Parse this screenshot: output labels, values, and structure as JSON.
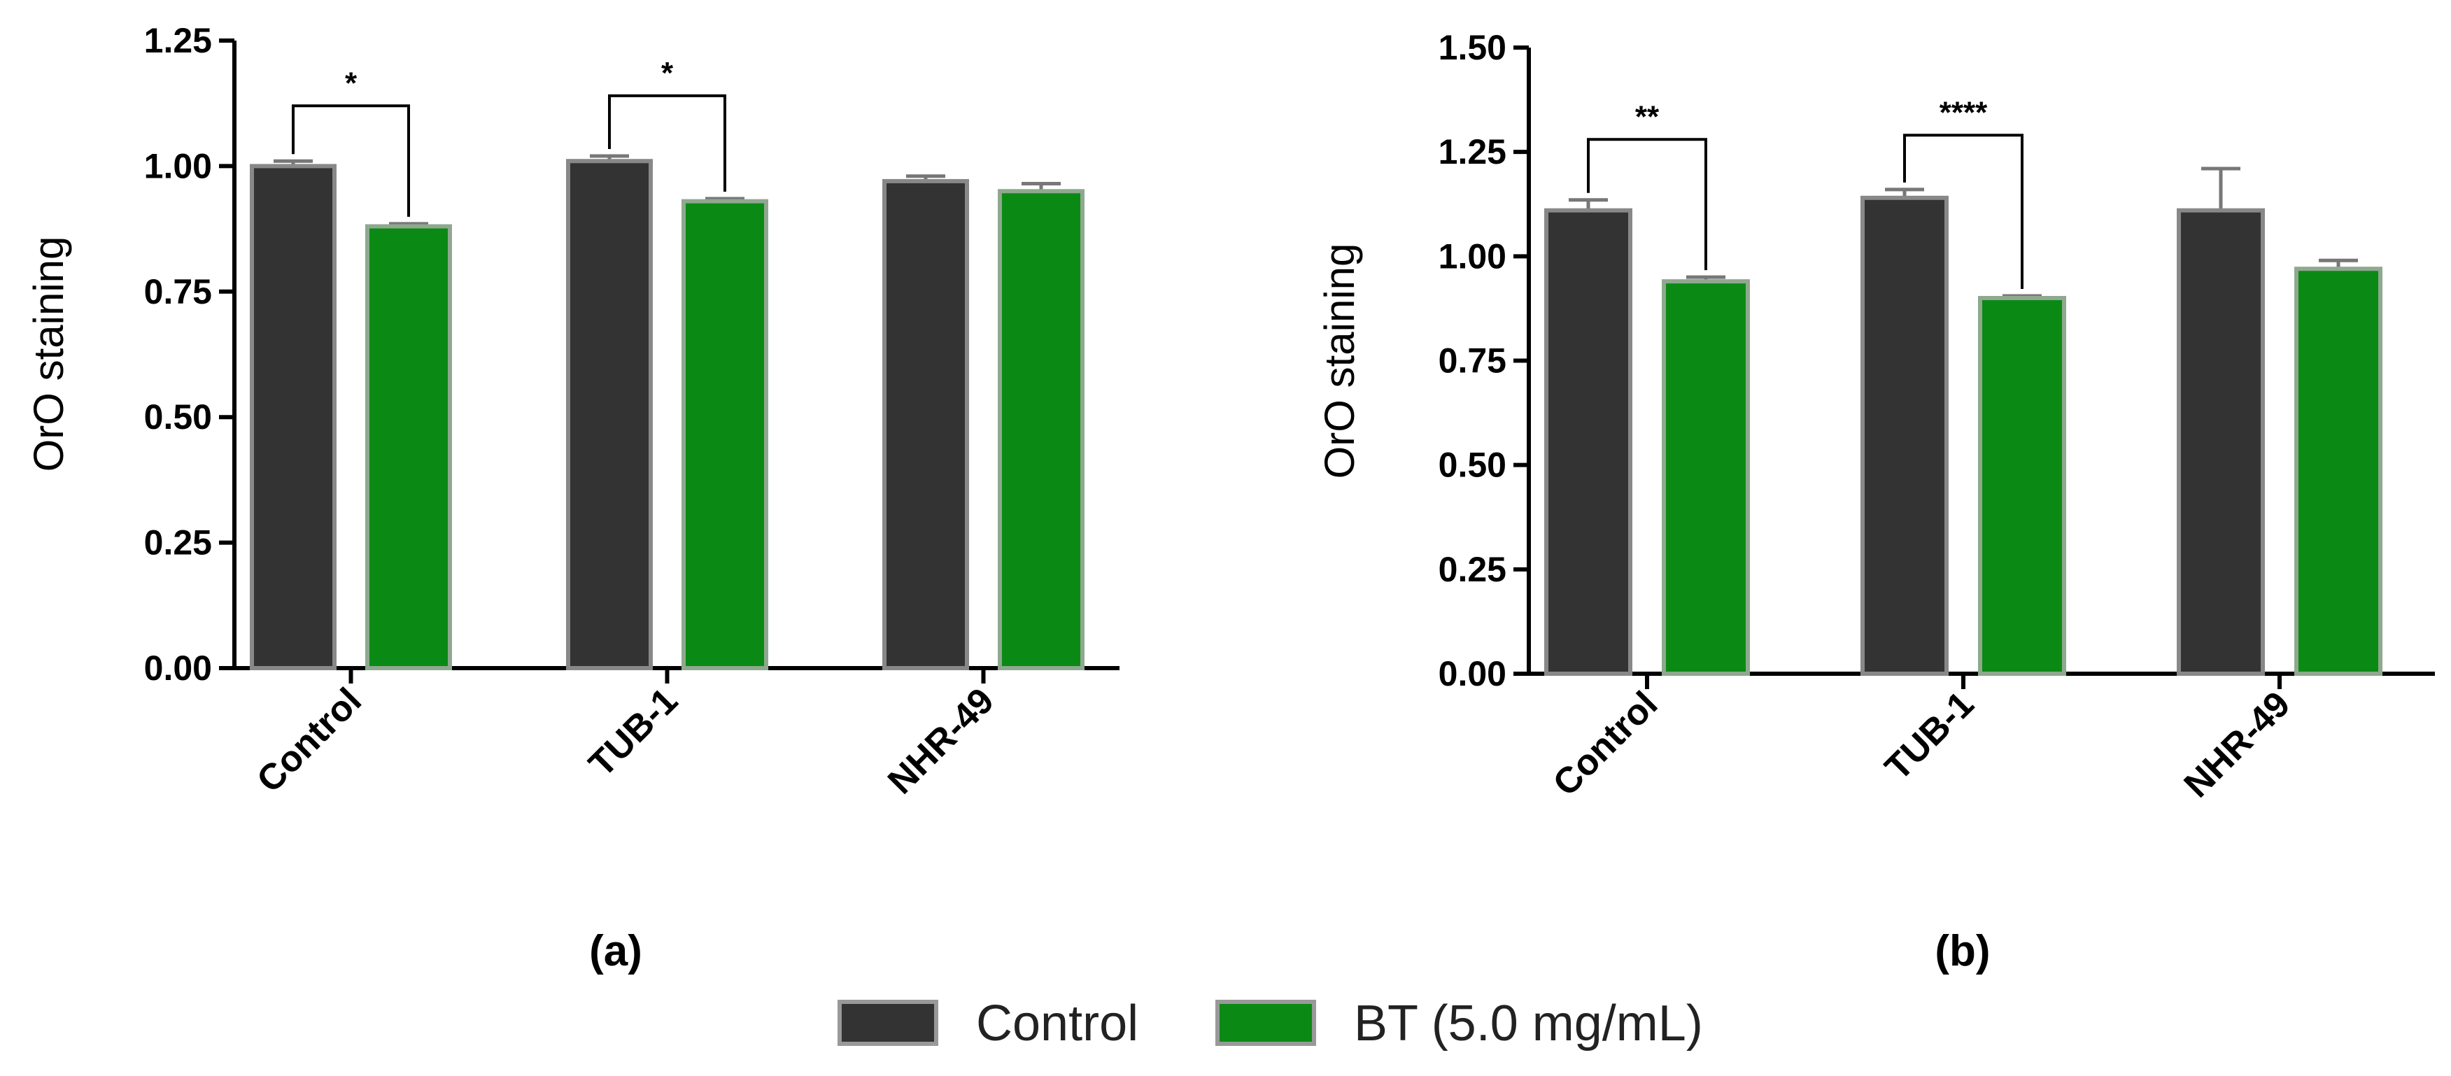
{
  "colors": {
    "control": "#333333",
    "control_stroke": "#888888",
    "bt": "#0a8a14",
    "bt_stroke": "#8fa88f"
  },
  "legend": [
    {
      "label": "Control",
      "color": "#333333"
    },
    {
      "label": "BT (5.0 mg/mL)",
      "color": "#0a8a14"
    }
  ],
  "chart_data": [
    {
      "type": "bar",
      "panel_label": "(a)",
      "ylabel": "OrO staining",
      "ylim": [
        0,
        1.25
      ],
      "yticks": [
        "0.00",
        "0.25",
        "0.50",
        "0.75",
        "1.00",
        "1.25"
      ],
      "categories": [
        "Control",
        "TUB-1",
        "NHR-49"
      ],
      "series": [
        {
          "name": "Control",
          "values": [
            1.0,
            1.01,
            0.97
          ],
          "errors": [
            0.01,
            0.01,
            0.01
          ]
        },
        {
          "name": "BT (5.0 mg/mL)",
          "values": [
            0.88,
            0.93,
            0.95
          ],
          "errors": [
            0.005,
            0.005,
            0.015
          ]
        }
      ],
      "significance": [
        {
          "category_index": 0,
          "label": "*",
          "y": 1.12
        },
        {
          "category_index": 1,
          "label": "*",
          "y": 1.14
        }
      ]
    },
    {
      "type": "bar",
      "panel_label": "(b)",
      "ylabel": "OrO staining",
      "ylim": [
        0,
        1.5
      ],
      "yticks": [
        "0.00",
        "0.25",
        "0.50",
        "0.75",
        "1.00",
        "1.25",
        "1.50"
      ],
      "categories": [
        "Control",
        "TUB-1",
        "NHR-49"
      ],
      "series": [
        {
          "name": "Control",
          "values": [
            1.11,
            1.14,
            1.11
          ],
          "errors": [
            0.025,
            0.02,
            0.1
          ]
        },
        {
          "name": "BT (5.0 mg/mL)",
          "values": [
            0.94,
            0.9,
            0.97
          ],
          "errors": [
            0.01,
            0.005,
            0.02
          ]
        }
      ],
      "significance": [
        {
          "category_index": 0,
          "label": "**",
          "y": 1.28
        },
        {
          "category_index": 1,
          "label": "****",
          "y": 1.29
        }
      ]
    }
  ]
}
